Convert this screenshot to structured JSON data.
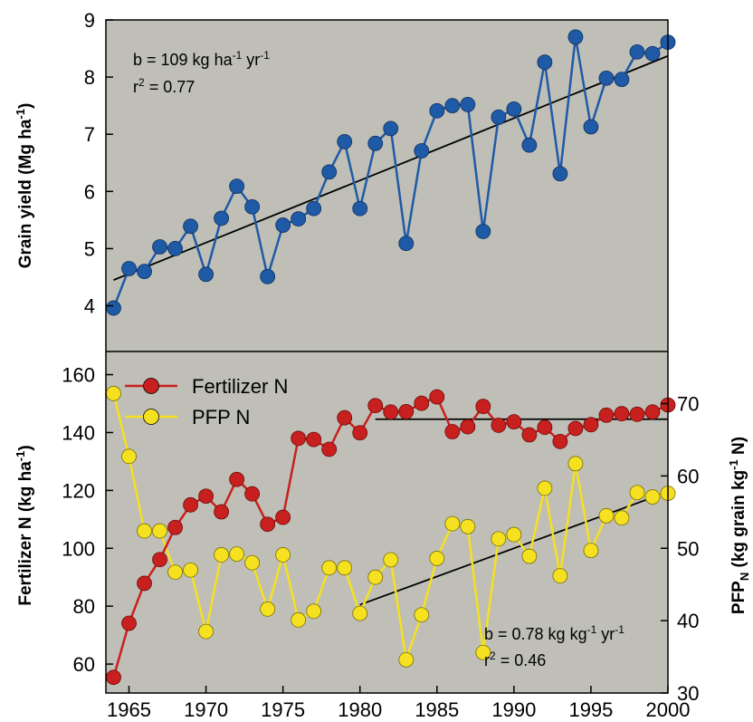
{
  "chart_data": [
    {
      "type": "line",
      "panel": "top",
      "ylabel": {
        "main": "Grain yield (Mg ha",
        "sup": "-1",
        "end": ")"
      },
      "xlim": [
        1963.5,
        2000
      ],
      "ylim": [
        3.2,
        9
      ],
      "yticks": [
        4,
        5,
        6,
        7,
        8,
        9
      ],
      "grid": false,
      "background": "#bfbfb7",
      "annotation": {
        "line1": {
          "a": "b = 109 kg ha",
          "s1": "-1",
          "b": " yr",
          "s2": "-1"
        },
        "line2": {
          "a": "r",
          "s1": "2",
          "b": " = 0.77"
        }
      },
      "series": [
        {
          "color": "#1f5aa6",
          "x": [
            1964,
            1965,
            1966,
            1967,
            1968,
            1969,
            1970,
            1971,
            1972,
            1973,
            1974,
            1975,
            1976,
            1977,
            1978,
            1979,
            1980,
            1981,
            1982,
            1983,
            1984,
            1985,
            1986,
            1987,
            1988,
            1989,
            1990,
            1991,
            1992,
            1993,
            1994,
            1995,
            1996,
            1997,
            1998,
            1999,
            2000
          ],
          "y": [
            3.96,
            4.65,
            4.6,
            5.03,
            5.0,
            5.39,
            4.55,
            5.53,
            6.09,
            5.73,
            4.51,
            5.41,
            5.52,
            5.7,
            6.34,
            6.87,
            5.7,
            6.84,
            7.1,
            5.09,
            6.71,
            7.41,
            7.5,
            7.52,
            5.3,
            7.3,
            7.44,
            6.81,
            8.26,
            6.31,
            8.7,
            7.13,
            7.98,
            7.96,
            8.44,
            8.41,
            8.61
          ]
        }
      ],
      "trendline": {
        "x": [
          1964,
          2000
        ],
        "y": [
          4.45,
          8.37
        ]
      }
    },
    {
      "type": "line",
      "panel": "bottom",
      "ylabel": {
        "main": "Fertilizer N (kg ha",
        "sup": "-1",
        "end": ")"
      },
      "y2label": {
        "a": "PFP",
        "sub": "N",
        "b": " (kg grain kg",
        "sup": "-1",
        "c": " N)"
      },
      "xlim": [
        1963.5,
        2000
      ],
      "ylim": [
        50,
        168
      ],
      "y2lim": [
        30,
        77.2
      ],
      "xticks": [
        1965,
        1970,
        1975,
        1980,
        1985,
        1990,
        1995,
        2000
      ],
      "yticks": [
        60,
        80,
        100,
        120,
        140,
        160
      ],
      "y2ticks": [
        30,
        40,
        50,
        60,
        70
      ],
      "grid": false,
      "background": "#bfbfb7",
      "legend": {
        "position": "top-left",
        "entries": [
          "Fertilizer N",
          "PFP N"
        ]
      },
      "annotation": {
        "line1": {
          "a": "b = 0.78 kg kg",
          "s1": "-1",
          "b": " yr",
          "s2": "-1"
        },
        "line2": {
          "a": "r",
          "s1": "2",
          "b": " = 0.46"
        }
      },
      "series": [
        {
          "name": "Fertilizer N",
          "axis": "left",
          "color": "#c8201e",
          "x": [
            1964,
            1965,
            1966,
            1967,
            1968,
            1969,
            1970,
            1971,
            1972,
            1973,
            1974,
            1975,
            1976,
            1977,
            1978,
            1979,
            1980,
            1981,
            1982,
            1983,
            1984,
            1985,
            1986,
            1987,
            1988,
            1989,
            1990,
            1991,
            1992,
            1993,
            1994,
            1995,
            1996,
            1997,
            1998,
            1999,
            2000
          ],
          "y": [
            55.4,
            74.1,
            87.9,
            96.1,
            107.2,
            115.0,
            118.0,
            112.6,
            123.8,
            118.8,
            108.3,
            110.7,
            138.0,
            137.6,
            134.2,
            145.1,
            139.9,
            149.3,
            147.1,
            147.2,
            150.1,
            152.3,
            140.3,
            142.0,
            149.0,
            142.5,
            143.7,
            139.2,
            141.8,
            136.9,
            141.4,
            142.7,
            146.0,
            146.5,
            146.3,
            147.1,
            149.5
          ]
        },
        {
          "name": "PFP N",
          "axis": "right",
          "color": "#f5e11f",
          "x": [
            1964,
            1965,
            1966,
            1967,
            1968,
            1969,
            1970,
            1971,
            1972,
            1973,
            1974,
            1975,
            1976,
            1977,
            1978,
            1979,
            1980,
            1981,
            1982,
            1983,
            1984,
            1985,
            1986,
            1987,
            1988,
            1989,
            1990,
            1991,
            1992,
            1993,
            1994,
            1995,
            1996,
            1997,
            1998,
            1999,
            2000
          ],
          "y": [
            71.4,
            62.7,
            52.4,
            52.4,
            46.7,
            47.0,
            38.5,
            49.1,
            49.2,
            48.0,
            41.6,
            49.1,
            40.1,
            41.3,
            47.3,
            47.3,
            41.0,
            46.0,
            48.4,
            34.6,
            40.8,
            48.6,
            53.4,
            53.0,
            35.6,
            51.3,
            51.9,
            48.9,
            58.3,
            46.2,
            61.7,
            49.7,
            54.5,
            54.2,
            57.7,
            57.1,
            57.6
          ]
        }
      ],
      "trendlines": [
        {
          "axis": "left",
          "x": [
            1981,
            2000
          ],
          "y": [
            144.6,
            144.6
          ]
        },
        {
          "axis": "right",
          "x": [
            1980,
            2000
          ],
          "y": [
            42.2,
            57.8
          ]
        }
      ]
    }
  ]
}
